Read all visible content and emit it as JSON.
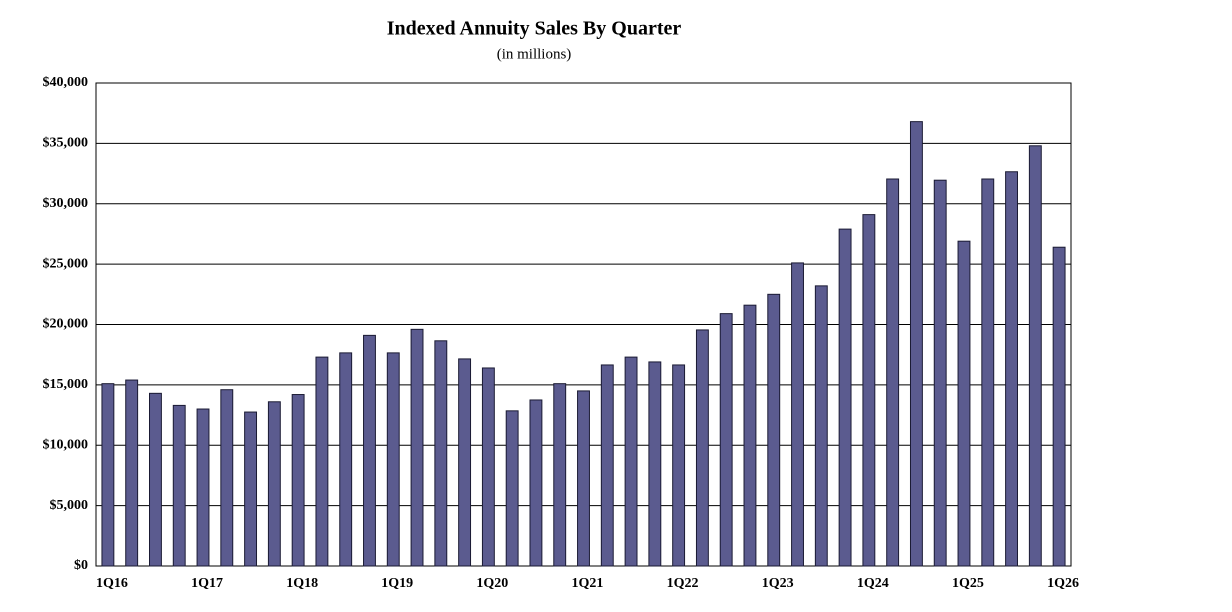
{
  "chart_data": {
    "type": "bar",
    "title": "Indexed Annuity Sales By Quarter",
    "subtitle": "(in millions)",
    "categories": [
      "1Q16",
      null,
      null,
      null,
      "1Q17",
      null,
      null,
      null,
      "1Q18",
      null,
      null,
      null,
      "1Q19",
      null,
      null,
      null,
      "1Q20",
      null,
      null,
      null,
      "1Q21",
      null,
      null,
      null,
      "1Q22",
      null,
      null,
      null,
      "1Q23",
      null,
      null,
      null,
      "1Q24",
      null,
      null,
      null,
      "1Q25",
      null,
      null,
      null,
      "1Q26"
    ],
    "values": [
      15100,
      15400,
      14300,
      13300,
      13000,
      14600,
      12750,
      13600,
      14200,
      17300,
      17650,
      19100,
      17650,
      19600,
      18650,
      17150,
      16400,
      12850,
      13750,
      15100,
      14500,
      16650,
      17300,
      16900,
      16650,
      19550,
      20900,
      21600,
      22500,
      25100,
      23200,
      27900,
      29100,
      32050,
      36800,
      31950,
      26900,
      32050,
      32650,
      34800,
      26400
    ],
    "color": "#5b5b8f",
    "ylim": [
      0,
      40000
    ],
    "yticks": [
      {
        "value": 0,
        "label": "$0"
      },
      {
        "value": 5000,
        "label": "$5,000"
      },
      {
        "value": 10000,
        "label": "$10,000"
      },
      {
        "value": 15000,
        "label": "$15,000"
      },
      {
        "value": 20000,
        "label": "$20,000"
      },
      {
        "value": 25000,
        "label": "$25,000"
      },
      {
        "value": 30000,
        "label": "$30,000"
      },
      {
        "value": 35000,
        "label": "$35,000"
      },
      {
        "value": 40000,
        "label": "$40,000"
      }
    ],
    "grid": true
  }
}
